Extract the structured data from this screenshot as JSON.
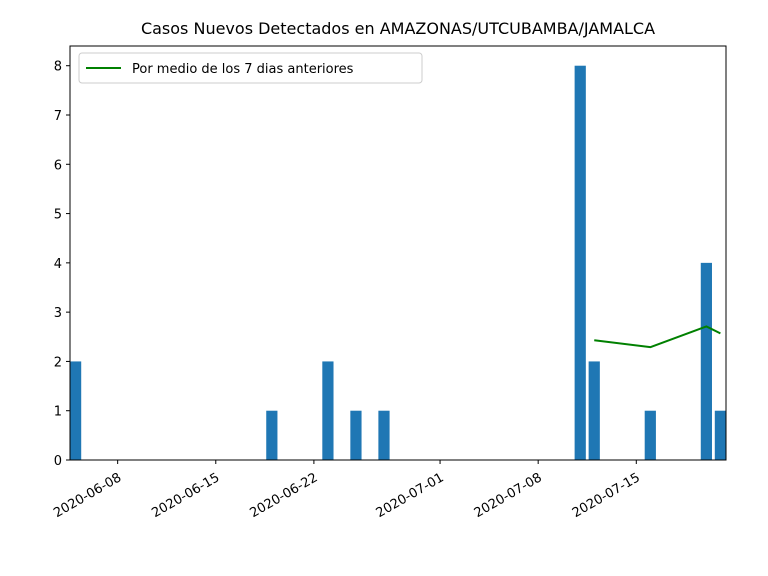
{
  "chart_data": {
    "type": "bar",
    "title": "Casos Nuevos Detectados en AMAZONAS/UTCUBAMBA/JAMALCA",
    "xlabel": "",
    "ylabel": "",
    "x_range": [
      "2020-06-04",
      "2020-07-21"
    ],
    "ylim": [
      0,
      8.4
    ],
    "y_ticks": [
      0,
      1,
      2,
      3,
      4,
      5,
      6,
      7,
      8
    ],
    "x_ticks": [
      "2020-06-08",
      "2020-06-15",
      "2020-06-22",
      "2020-07-01",
      "2020-07-08",
      "2020-07-15"
    ],
    "grid": false,
    "legend_position": "upper-left",
    "colors": {
      "bars": "#1f77b4",
      "line": "#008000"
    },
    "bars": [
      {
        "date": "2020-06-05",
        "value": 2
      },
      {
        "date": "2020-06-19",
        "value": 1
      },
      {
        "date": "2020-06-23",
        "value": 2
      },
      {
        "date": "2020-06-25",
        "value": 1
      },
      {
        "date": "2020-06-27",
        "value": 1
      },
      {
        "date": "2020-07-11",
        "value": 8
      },
      {
        "date": "2020-07-12",
        "value": 2
      },
      {
        "date": "2020-07-16",
        "value": 1
      },
      {
        "date": "2020-07-20",
        "value": 4
      },
      {
        "date": "2020-07-21",
        "value": 1
      }
    ],
    "series": [
      {
        "name": "Por medio de los 7 dias anteriores",
        "type": "line",
        "points": [
          {
            "date": "2020-07-12",
            "value": 2.43
          },
          {
            "date": "2020-07-16",
            "value": 2.29
          },
          {
            "date": "2020-07-20",
            "value": 2.71
          },
          {
            "date": "2020-07-21",
            "value": 2.57
          }
        ]
      }
    ]
  }
}
